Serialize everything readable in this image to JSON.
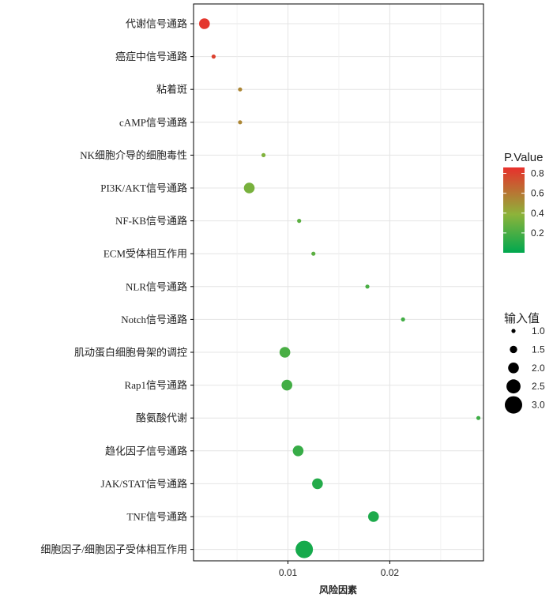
{
  "chart_data": {
    "type": "scatter",
    "xlabel": "风险因素",
    "xticks": [
      0.01,
      0.02
    ],
    "xtick_labels": [
      "0.01",
      "0.02"
    ],
    "xlim": [
      0.00073,
      0.0292
    ],
    "grid": true,
    "colors": {
      "low": "#00a84f",
      "mid": "#8db33a",
      "high": "#e8302c"
    },
    "color_legend": {
      "title": "P.Value",
      "range": [
        0.0,
        0.86
      ],
      "ticks": [
        0.2,
        0.4,
        0.6,
        0.8
      ],
      "tick_labels": [
        "0.2",
        "0.4",
        "0.6",
        "0.8"
      ],
      "placement": "right"
    },
    "size_legend": {
      "title": "输入值",
      "values": [
        1.0,
        1.5,
        2.0,
        2.5,
        3.0
      ],
      "labels": [
        "1.0",
        "1.5",
        "2.0",
        "2.5",
        "3.0"
      ],
      "placement": "right"
    },
    "points": [
      {
        "category": "代谢信号通路",
        "x": 0.0018,
        "size": 2.0,
        "p": 0.84
      },
      {
        "category": "癌症中信号通路",
        "x": 0.0027,
        "size": 1.0,
        "p": 0.8
      },
      {
        "category": "粘着斑",
        "x": 0.0053,
        "size": 1.0,
        "p": 0.55
      },
      {
        "category": "cAMP信号通路",
        "x": 0.0053,
        "size": 1.0,
        "p": 0.55
      },
      {
        "category": "NK细胞介导的细胞毒性",
        "x": 0.0076,
        "size": 1.0,
        "p": 0.35
      },
      {
        "category": "PI3K/AKT信号通路",
        "x": 0.0062,
        "size": 2.0,
        "p": 0.33
      },
      {
        "category": "NF-KB信号通路",
        "x": 0.0111,
        "size": 1.0,
        "p": 0.25
      },
      {
        "category": "ECM受体相互作用",
        "x": 0.0125,
        "size": 1.0,
        "p": 0.25
      },
      {
        "category": "NLR信号通路",
        "x": 0.0178,
        "size": 1.0,
        "p": 0.2
      },
      {
        "category": "Notch信号通路",
        "x": 0.0213,
        "size": 1.0,
        "p": 0.18
      },
      {
        "category": "肌动蛋白细胞骨架的调控",
        "x": 0.0097,
        "size": 2.0,
        "p": 0.2
      },
      {
        "category": "Rap1信号通路",
        "x": 0.0099,
        "size": 2.0,
        "p": 0.18
      },
      {
        "category": "酪氨酸代谢",
        "x": 0.0287,
        "size": 1.0,
        "p": 0.17
      },
      {
        "category": "趋化因子信号通路",
        "x": 0.011,
        "size": 2.0,
        "p": 0.15
      },
      {
        "category": "JAK/STAT信号通路",
        "x": 0.0129,
        "size": 2.0,
        "p": 0.1
      },
      {
        "category": "TNF信号通路",
        "x": 0.0184,
        "size": 2.0,
        "p": 0.08
      },
      {
        "category": "细胞因子/细胞因子受体相互作用",
        "x": 0.0116,
        "size": 3.0,
        "p": 0.06
      }
    ]
  }
}
